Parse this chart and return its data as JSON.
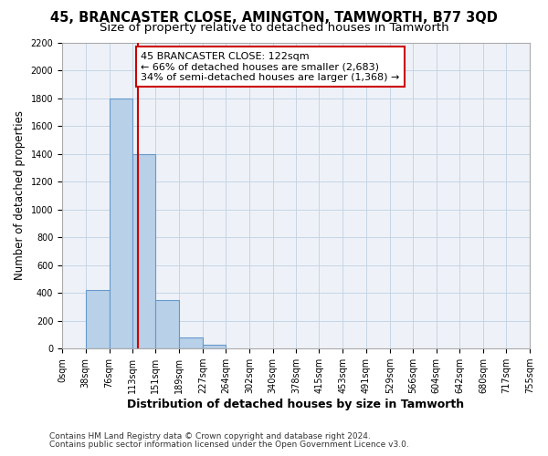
{
  "title": "45, BRANCASTER CLOSE, AMINGTON, TAMWORTH, B77 3QD",
  "subtitle": "Size of property relative to detached houses in Tamworth",
  "xlabel": "Distribution of detached houses by size in Tamworth",
  "ylabel": "Number of detached properties",
  "bin_edges": [
    0,
    38,
    76,
    113,
    151,
    189,
    227,
    264,
    302,
    340,
    378,
    415,
    453,
    491,
    529,
    566,
    604,
    642,
    680,
    717,
    755
  ],
  "bar_heights": [
    0,
    420,
    1800,
    1400,
    350,
    80,
    25,
    0,
    0,
    0,
    0,
    0,
    0,
    0,
    0,
    0,
    0,
    0,
    0,
    0
  ],
  "bar_color": "#b8d0e8",
  "bar_edge_color": "#6699cc",
  "grid_color": "#c5d5e5",
  "background_color": "#eef2f8",
  "vline_x": 122,
  "vline_color": "#cc0000",
  "ylim": [
    0,
    2200
  ],
  "yticks": [
    0,
    200,
    400,
    600,
    800,
    1000,
    1200,
    1400,
    1600,
    1800,
    2000,
    2200
  ],
  "annotation_text": "45 BRANCASTER CLOSE: 122sqm\n← 66% of detached houses are smaller (2,683)\n34% of semi-detached houses are larger (1,368) →",
  "annotation_box_color": "#ffffff",
  "annotation_box_edge": "#cc0000",
  "footer_line1": "Contains HM Land Registry data © Crown copyright and database right 2024.",
  "footer_line2": "Contains public sector information licensed under the Open Government Licence v3.0.",
  "title_fontsize": 10.5,
  "subtitle_fontsize": 9.5,
  "tick_label_fontsize": 7,
  "ylabel_fontsize": 8.5,
  "xlabel_fontsize": 9,
  "annotation_fontsize": 8,
  "footer_fontsize": 6.5
}
